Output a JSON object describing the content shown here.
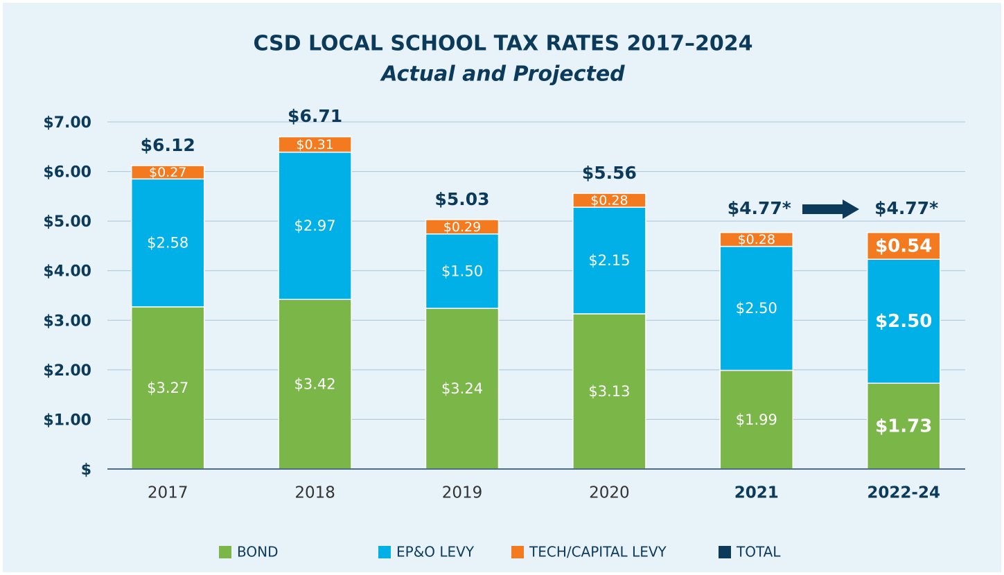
{
  "chart_data": {
    "type": "stacked_bar",
    "title": "CSD LOCAL SCHOOL TAX RATES 2017–2024",
    "subtitle": "Actual and Projected",
    "categories": [
      "2017",
      "2018",
      "2019",
      "2020",
      "2021",
      "2022-24"
    ],
    "series": [
      {
        "name": "BOND",
        "color": "#7ab648",
        "values": [
          3.27,
          3.42,
          3.24,
          3.13,
          1.99,
          1.73
        ],
        "value_labels": [
          "$3.27",
          "$3.42",
          "$3.24",
          "$3.13",
          "$1.99",
          "$1.73"
        ]
      },
      {
        "name": "EP&O LEVY",
        "color": "#00b0e6",
        "values": [
          2.58,
          2.97,
          1.5,
          2.15,
          2.5,
          2.5
        ],
        "value_labels": [
          "$2.58",
          "$2.97",
          "$1.50",
          "$2.15",
          "$2.50",
          "$2.50"
        ]
      },
      {
        "name": "TECH/CAPITAL LEVY",
        "color": "#f47a20",
        "values": [
          0.27,
          0.31,
          0.29,
          0.28,
          0.28,
          0.54
        ],
        "value_labels": [
          "$0.27",
          "$0.31",
          "$0.29",
          "$0.28",
          "$0.28",
          "$0.54"
        ]
      },
      {
        "name": "TOTAL",
        "color": "#0b3a5b",
        "values": [
          6.12,
          6.71,
          5.03,
          5.56,
          4.77,
          4.77
        ],
        "value_labels": [
          "$6.12",
          "$6.71",
          "$5.03",
          "$5.56",
          "$4.77*",
          "$4.77*"
        ]
      }
    ],
    "ylim": [
      0,
      7
    ],
    "yticks": [
      {
        "value": 0,
        "label": "$"
      },
      {
        "value": 1,
        "label": "$1.00"
      },
      {
        "value": 2,
        "label": "$2.00"
      },
      {
        "value": 3,
        "label": "$3.00"
      },
      {
        "value": 4,
        "label": "$4.00"
      },
      {
        "value": 5,
        "label": "$5.00"
      },
      {
        "value": 6,
        "label": "$6.00"
      },
      {
        "value": 7,
        "label": "$7.00"
      }
    ],
    "grid": true
  }
}
